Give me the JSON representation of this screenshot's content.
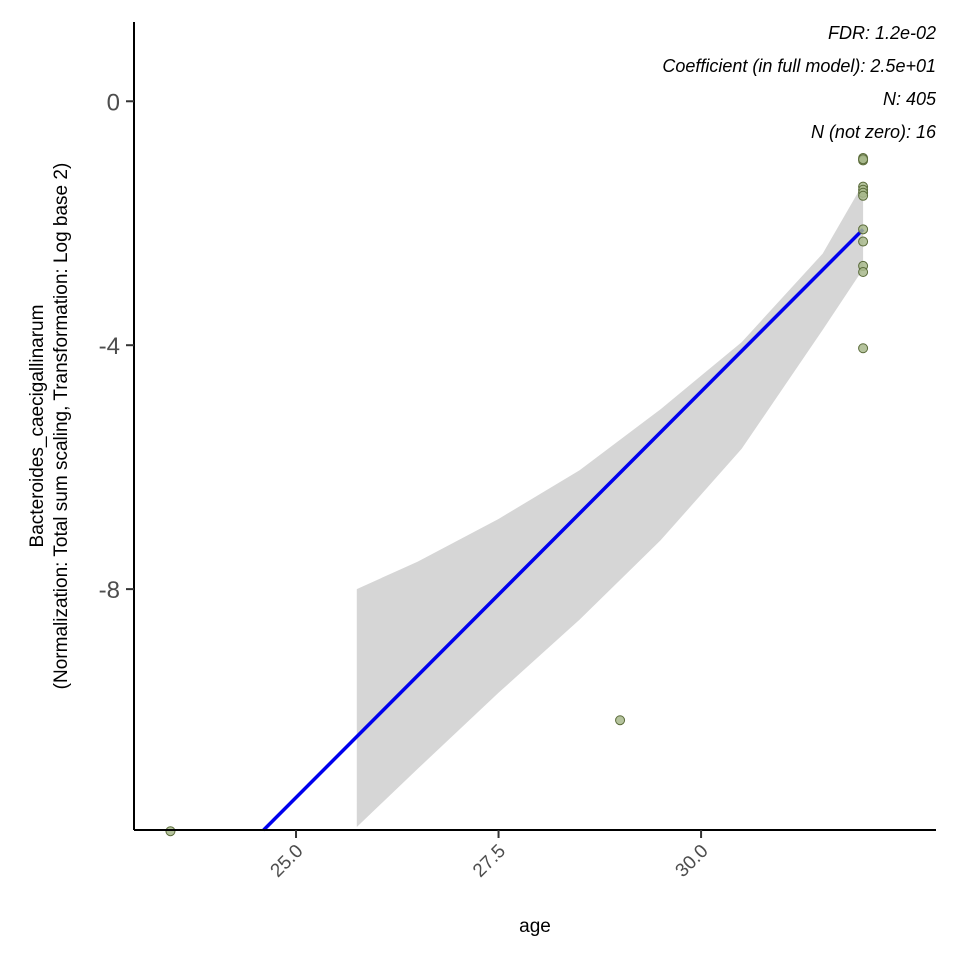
{
  "chart_data": {
    "type": "scatter",
    "title": "",
    "xlabel": "age",
    "ylabel_line1": "Bacteroides_caecigallinarum",
    "ylabel_line2": "(Normalization: Total sum scaling, Transformation: Log base 2)",
    "xlim": [
      23.0,
      32.9
    ],
    "ylim": [
      -11.95,
      1.3
    ],
    "x_ticks": [
      25.0,
      27.5,
      30.0
    ],
    "x_tick_labels": [
      "25.0",
      "27.5",
      "30.0"
    ],
    "y_ticks": [
      0,
      -4,
      -8
    ],
    "y_tick_labels": [
      "0",
      "-4",
      "-8"
    ],
    "grid": false,
    "legend": "none",
    "annotations": [
      "FDR: 1.2e-02",
      "Coefficient (in full model): 2.5e+01",
      "N: 405",
      "N (not zero): 16"
    ],
    "points": [
      {
        "x": 23.45,
        "y": -11.97
      },
      {
        "x": 29.0,
        "y": -10.15
      },
      {
        "x": 32.0,
        "y": -0.93
      },
      {
        "x": 32.0,
        "y": -0.97
      },
      {
        "x": 32.0,
        "y": -0.95
      },
      {
        "x": 32.0,
        "y": -1.4
      },
      {
        "x": 32.0,
        "y": -1.45
      },
      {
        "x": 32.0,
        "y": -1.5
      },
      {
        "x": 32.0,
        "y": -1.55
      },
      {
        "x": 32.0,
        "y": -2.1
      },
      {
        "x": 32.0,
        "y": -2.3
      },
      {
        "x": 32.0,
        "y": -2.7
      },
      {
        "x": 32.0,
        "y": -2.8
      },
      {
        "x": 32.0,
        "y": -4.05
      }
    ],
    "fit_line": {
      "x": [
        24.6,
        32.0
      ],
      "y": [
        -11.95,
        -2.1
      ]
    },
    "confidence_band": {
      "x": [
        25.75,
        26.5,
        27.5,
        28.5,
        29.5,
        30.5,
        31.5,
        32.0
      ],
      "upper": [
        -8.0,
        -7.55,
        -6.85,
        -6.05,
        -5.05,
        -3.95,
        -2.5,
        -1.35
      ],
      "lower": [
        -11.9,
        -10.95,
        -9.7,
        -8.5,
        -7.2,
        -5.7,
        -3.75,
        -2.75
      ]
    },
    "colors": {
      "point_fill": "#a8b98c",
      "point_stroke": "#5a6b3a",
      "fit_line": "#0000ee",
      "band": "#d6d6d6"
    }
  }
}
